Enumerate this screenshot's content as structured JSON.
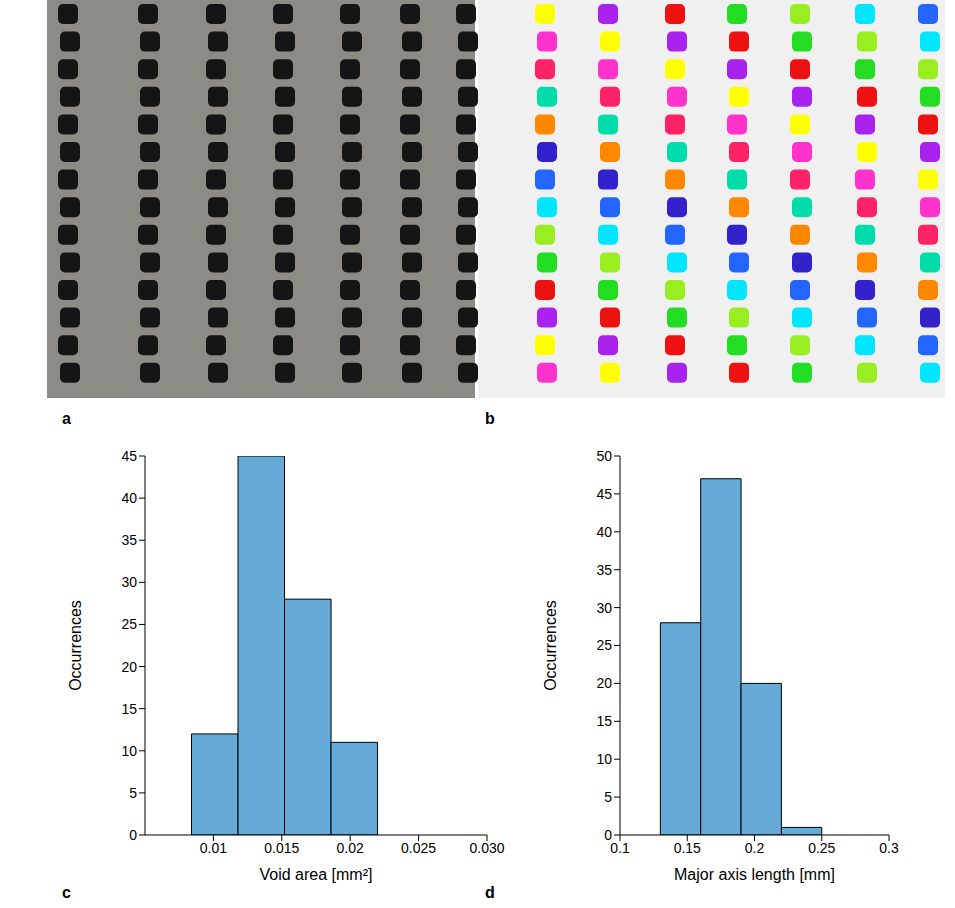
{
  "panel_labels": [
    "a",
    "b",
    "c",
    "d"
  ],
  "chart_data": [
    {
      "type": "histogram",
      "bins": [
        0.0084,
        0.0118,
        0.0152,
        0.0186,
        0.022
      ],
      "values": [
        12,
        45,
        28,
        11
      ],
      "x_label": "Void area [mm²]",
      "y_label": "Occurrences",
      "xlim": [
        0.005,
        0.03
      ],
      "xticks": [
        0.01,
        0.015,
        0.02,
        0.025,
        {
          "value": 0.03,
          "label": "0.030"
        }
      ],
      "ylim": [
        0,
        45
      ],
      "yticks": [
        0,
        5,
        10,
        15,
        20,
        25,
        30,
        35,
        40,
        45
      ],
      "color": "#66aad7"
    },
    {
      "type": "histogram",
      "bins": [
        0.13,
        0.16,
        0.19,
        0.22,
        0.25
      ],
      "values": [
        28,
        47,
        20,
        1
      ],
      "x_label": "Major axis length [mm]",
      "y_label": "Occurrences",
      "xlim": [
        0.1,
        0.3
      ],
      "xticks": [
        0.1,
        0.15,
        0.2,
        0.25,
        0.3
      ],
      "ylim": [
        0,
        50
      ],
      "yticks": [
        0,
        5,
        10,
        15,
        20,
        25,
        30,
        35,
        40,
        45,
        50
      ],
      "color": "#66aad7"
    }
  ]
}
